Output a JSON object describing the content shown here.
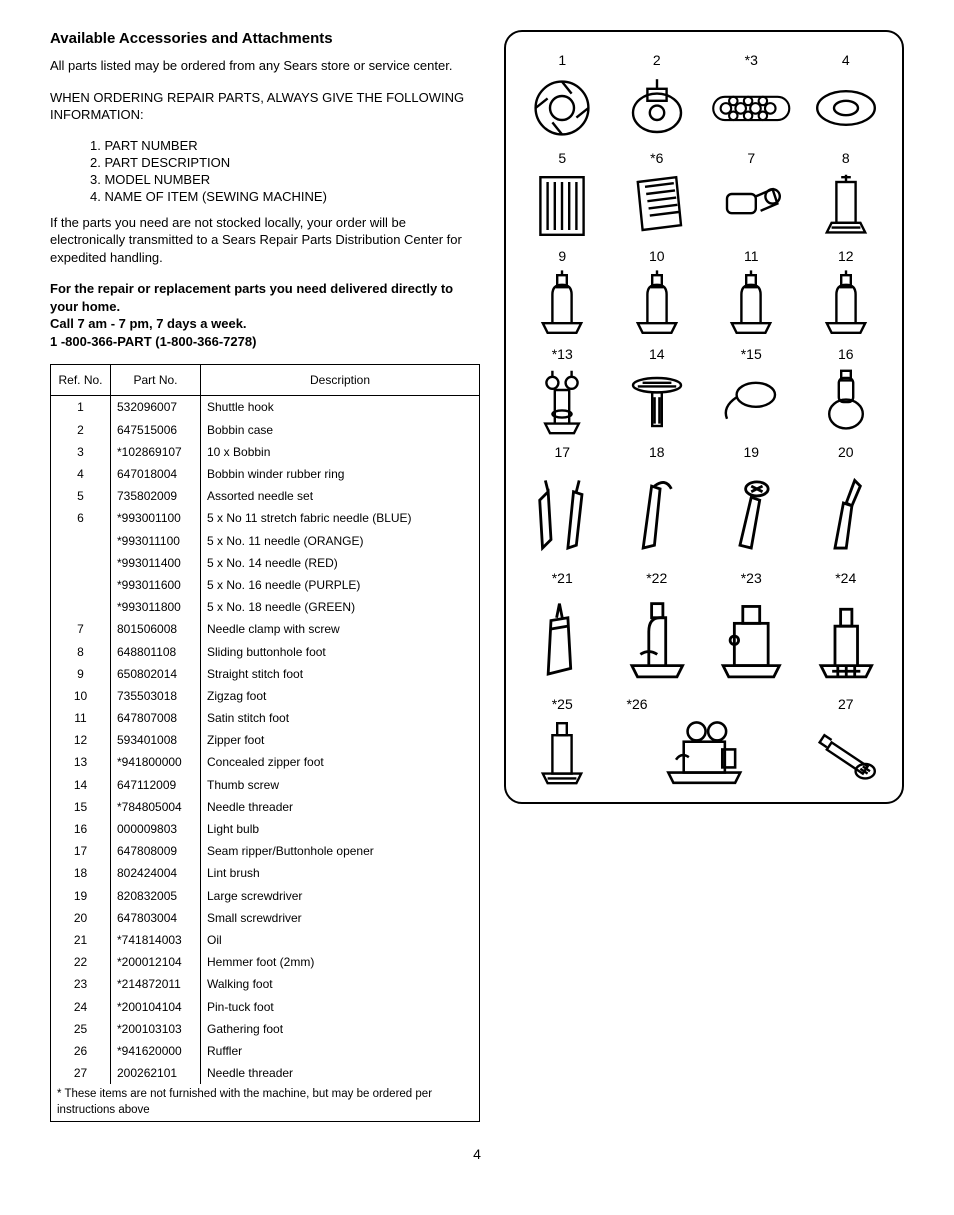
{
  "title": "Available Accessories and Attachments",
  "intro": "All parts listed may be ordered from any Sears store or service center.",
  "ordering_heading": "WHEN ORDERING REPAIR PARTS, ALWAYS GIVE THE FOLLOWING INFORMATION:",
  "ordering_items": [
    "1. PART NUMBER",
    "2. PART DESCRIPTION",
    "3. MODEL NUMBER",
    "4. NAME OF ITEM (SEWING MACHINE)"
  ],
  "stock_note": "If the parts you need are not stocked locally, your order will be electronically transmitted to a Sears Repair Parts Distribution Center for expedited handling.",
  "delivery_lines": [
    "For the repair or replacement parts you need delivered directly to your home.",
    "Call 7 am - 7 pm, 7 days a week.",
    "1 -800-366-PART (1-800-366-7278)"
  ],
  "table": {
    "headers": [
      "Ref. No.",
      "Part No.",
      "Description"
    ],
    "rows": [
      [
        "1",
        "532096007",
        "Shuttle hook"
      ],
      [
        "2",
        "647515006",
        "Bobbin case"
      ],
      [
        "3",
        "*102869107",
        "10 x Bobbin"
      ],
      [
        "4",
        "647018004",
        "Bobbin winder rubber ring"
      ],
      [
        "5",
        "735802009",
        "Assorted needle set"
      ],
      [
        "6",
        "*993001100",
        "5 x No 11 stretch fabric needle (BLUE)"
      ],
      [
        "",
        "*993011100",
        "5 x No. 11 needle (ORANGE)"
      ],
      [
        "",
        "*993011400",
        "5 x No. 14 needle (RED)"
      ],
      [
        "",
        "*993011600",
        "5 x No. 16 needle (PURPLE)"
      ],
      [
        "",
        "*993011800",
        "5 x No. 18 needle (GREEN)"
      ],
      [
        "7",
        "801506008",
        "Needle clamp with screw"
      ],
      [
        "8",
        "648801108",
        "Sliding buttonhole foot"
      ],
      [
        "9",
        "650802014",
        "Straight stitch foot"
      ],
      [
        "10",
        "735503018",
        "Zigzag foot"
      ],
      [
        "11",
        "647807008",
        "Satin stitch foot"
      ],
      [
        "12",
        "593401008",
        "Zipper foot"
      ],
      [
        "13",
        "*941800000",
        "Concealed zipper foot"
      ],
      [
        "14",
        "647112009",
        "Thumb screw"
      ],
      [
        "15",
        "*784805004",
        "Needle threader"
      ],
      [
        "16",
        "000009803",
        "Light bulb"
      ],
      [
        "17",
        "647808009",
        "Seam ripper/Buttonhole opener"
      ],
      [
        "18",
        "802424004",
        "Lint brush"
      ],
      [
        "19",
        "820832005",
        "Large screwdriver"
      ],
      [
        "20",
        "647803004",
        "Small screwdriver"
      ],
      [
        "21",
        "*741814003",
        "Oil"
      ],
      [
        "22",
        "*200012104",
        "Hemmer foot (2mm)"
      ],
      [
        "23",
        "*214872011",
        "Walking foot"
      ],
      [
        "24",
        "*200104104",
        "Pin-tuck foot"
      ],
      [
        "25",
        "*200103103",
        "Gathering foot"
      ],
      [
        "26",
        "*941620000",
        "Ruffler"
      ],
      [
        "27",
        "200262101",
        "Needle threader"
      ]
    ],
    "footnote": "* These items are not furnished with the machine, but may be ordered per instructions above"
  },
  "diagram_labels": [
    "1",
    "2",
    "*3",
    "4",
    "5",
    "*6",
    "7",
    "8",
    "9",
    "10",
    "11",
    "12",
    "*13",
    "14",
    "*15",
    "16",
    "17",
    "18",
    "19",
    "20",
    "*21",
    "*22",
    "*23",
    "*24",
    "*25",
    "*26",
    "27"
  ],
  "page_number": "4"
}
